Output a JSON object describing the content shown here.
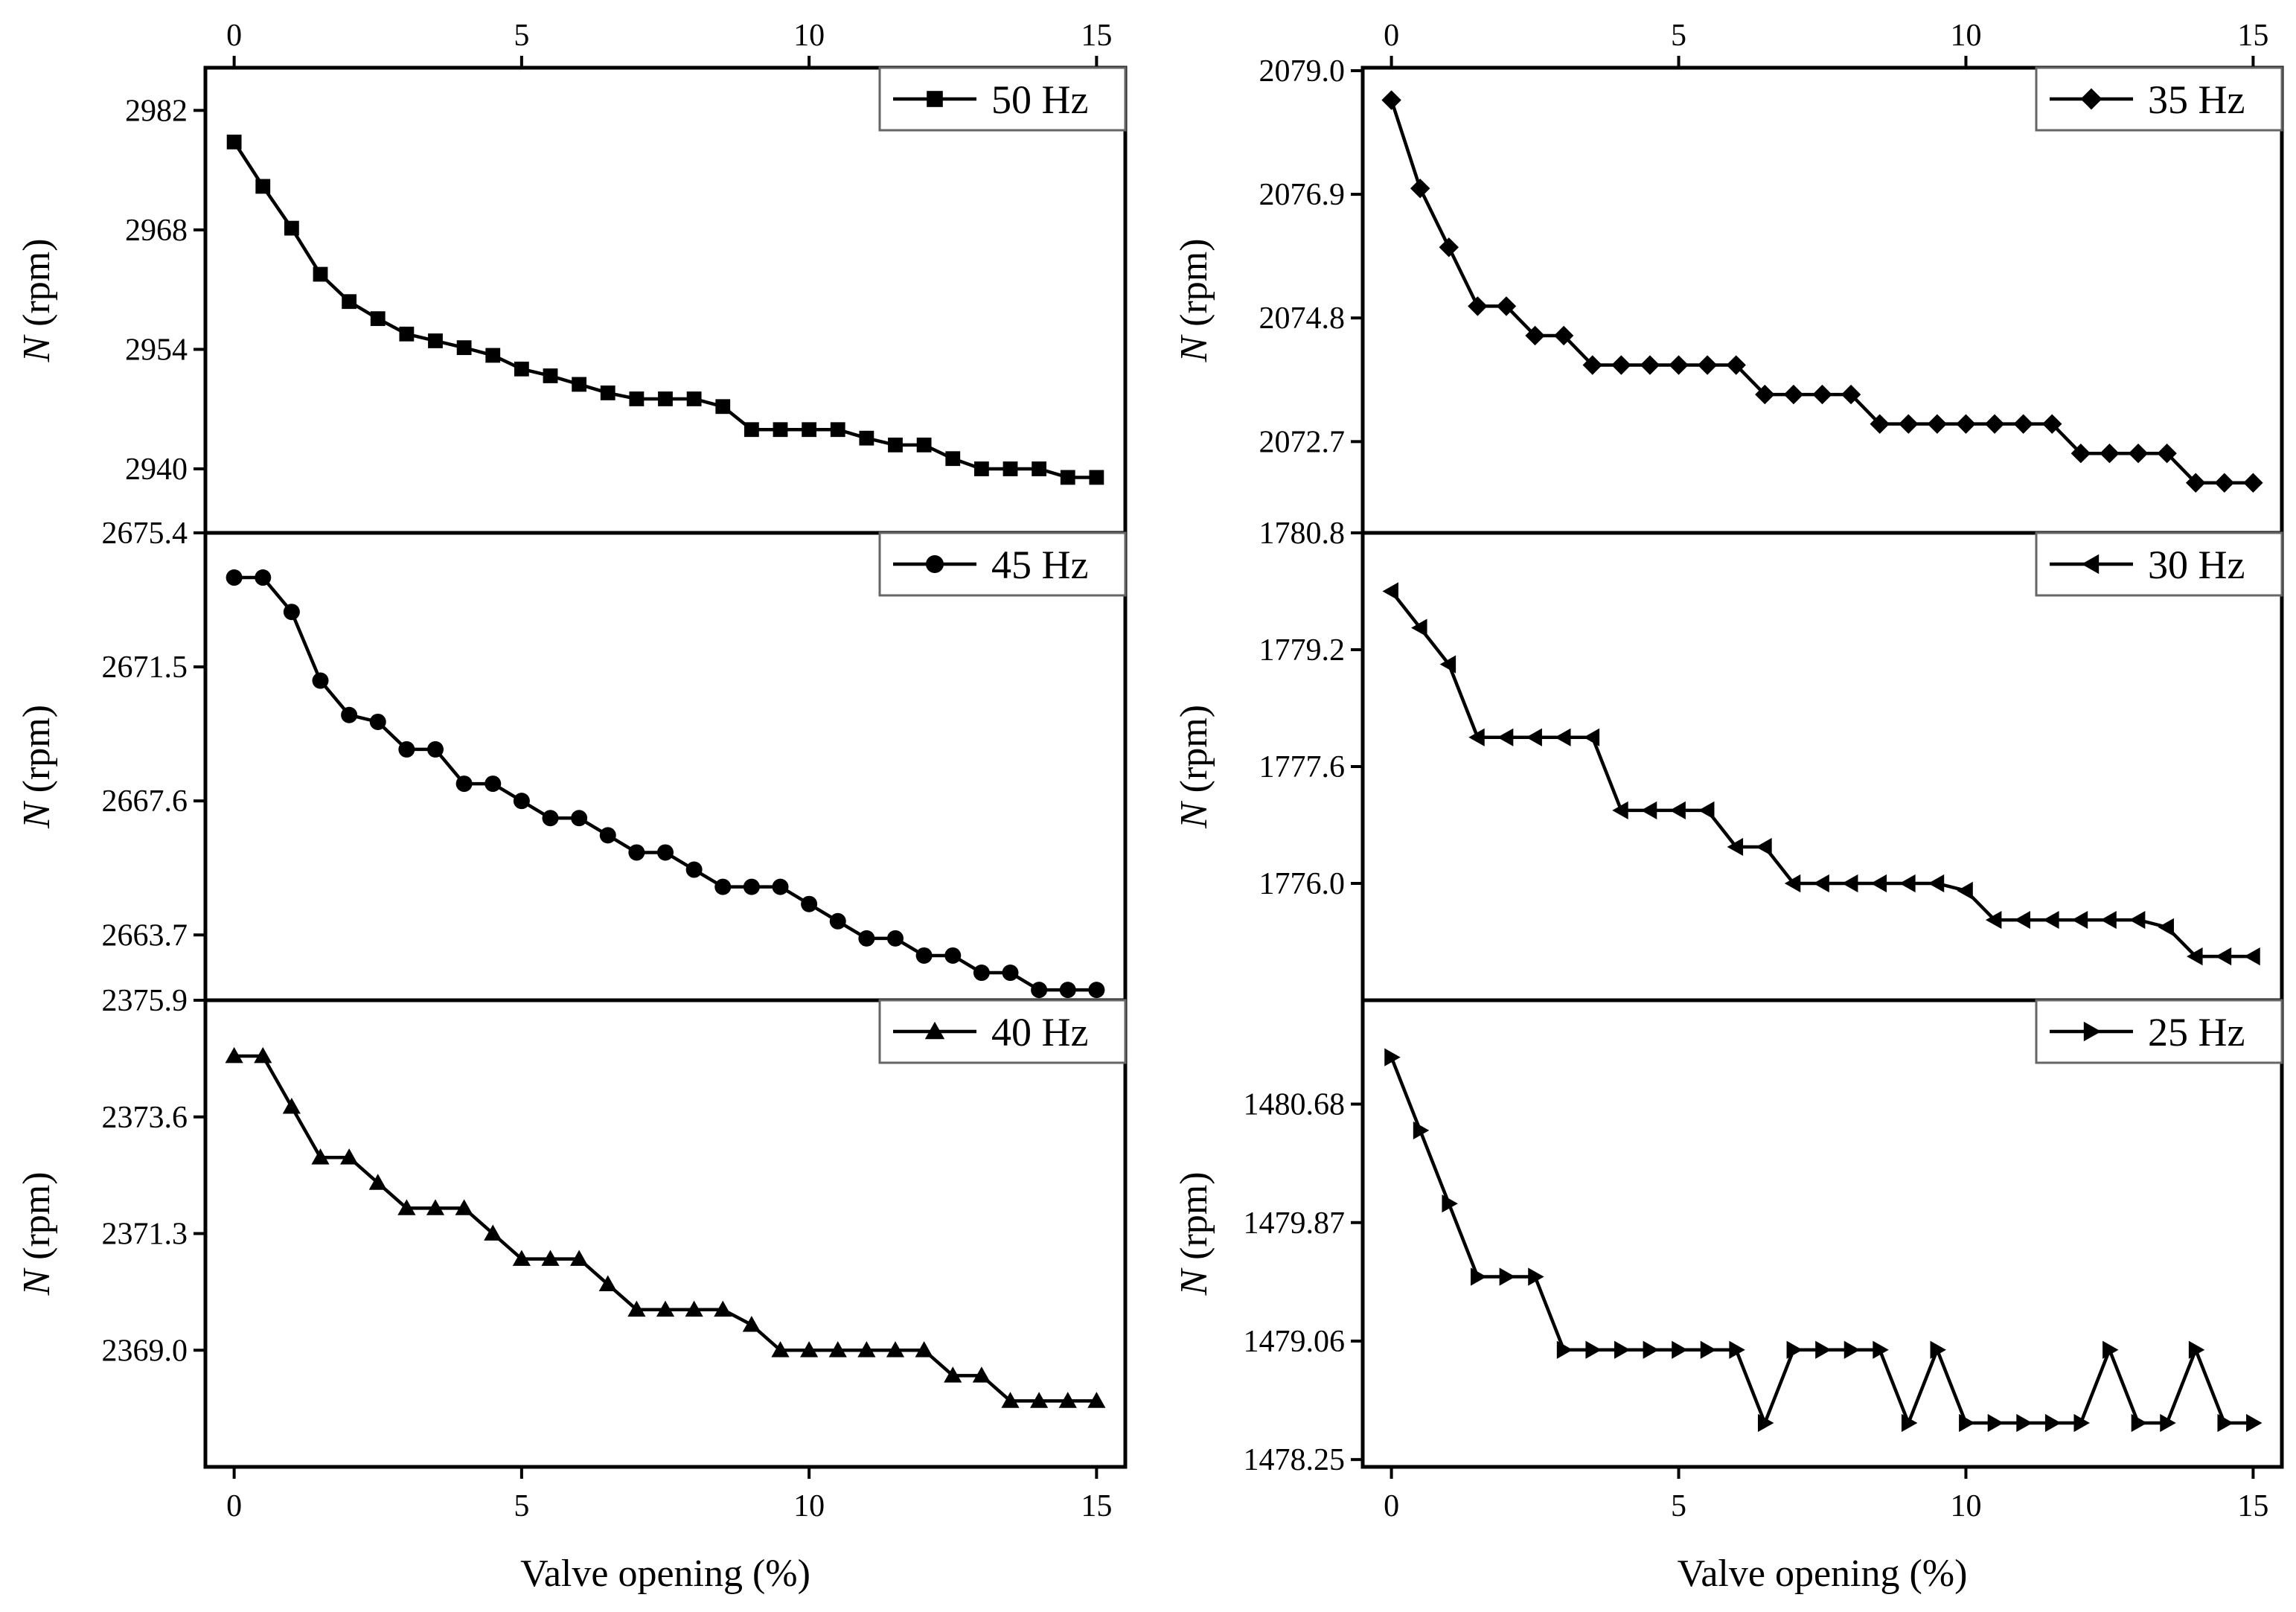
{
  "chart_data": [
    {
      "type": "line",
      "legend": "50 Hz",
      "marker": "square",
      "xlabel": "Valve opening (%)",
      "ylabel_italic": "N",
      "ylabel_rest": " (rpm)",
      "xlim": [
        -0.5,
        15.5
      ],
      "ylim": [
        2932.5,
        2987
      ],
      "xticks": [
        0,
        5,
        10,
        15
      ],
      "yticks": [
        2940,
        2954,
        2968,
        2982
      ],
      "ytick_labels": [
        "2940",
        "2954",
        "2968",
        "2982"
      ],
      "x": [
        0,
        0.5,
        1,
        1.5,
        2,
        2.5,
        3,
        3.5,
        4,
        4.5,
        5,
        5.5,
        6,
        6.5,
        7,
        7.5,
        8,
        8.5,
        9,
        9.5,
        10,
        10.5,
        11,
        11.5,
        12,
        12.5,
        13,
        13.5,
        14,
        14.5,
        15
      ],
      "values": [
        2978.3,
        2973.1,
        2968.2,
        2962.8,
        2959.6,
        2957.6,
        2955.8,
        2955.0,
        2954.2,
        2953.3,
        2951.7,
        2950.9,
        2949.9,
        2948.9,
        2948.2,
        2948.2,
        2948.2,
        2947.3,
        2944.6,
        2944.6,
        2944.6,
        2944.6,
        2943.6,
        2942.8,
        2942.8,
        2941.2,
        2940.0,
        2940.0,
        2940.0,
        2939.0,
        2939.0
      ]
    },
    {
      "type": "line",
      "legend": "45 Hz",
      "marker": "circle",
      "xlabel": "Valve opening (%)",
      "ylabel_italic": "N",
      "ylabel_rest": " (rpm)",
      "xlim": [
        -0.5,
        15.5
      ],
      "ylim": [
        2661.8,
        2675.4
      ],
      "xticks": [
        0,
        5,
        10,
        15
      ],
      "yticks": [
        2663.7,
        2667.6,
        2671.5,
        2675.4
      ],
      "ytick_labels": [
        "2663.7",
        "2667.6",
        "2671.5",
        "2675.4"
      ],
      "x": [
        0,
        0.5,
        1,
        1.5,
        2,
        2.5,
        3,
        3.5,
        4,
        4.5,
        5,
        5.5,
        6,
        6.5,
        7,
        7.5,
        8,
        8.5,
        9,
        9.5,
        10,
        10.5,
        11,
        11.5,
        12,
        12.5,
        13,
        13.5,
        14,
        14.5,
        15
      ],
      "values": [
        2674.1,
        2674.1,
        2673.1,
        2671.1,
        2670.1,
        2669.9,
        2669.1,
        2669.1,
        2668.1,
        2668.1,
        2667.6,
        2667.1,
        2667.1,
        2666.6,
        2666.1,
        2666.1,
        2665.6,
        2665.1,
        2665.1,
        2665.1,
        2664.6,
        2664.1,
        2663.6,
        2663.6,
        2663.1,
        2663.1,
        2662.6,
        2662.6,
        2662.1,
        2662.1,
        2662.1
      ]
    },
    {
      "type": "line",
      "legend": "40 Hz",
      "marker": "triangle-up",
      "xlabel": "Valve opening (%)",
      "ylabel_italic": "N",
      "ylabel_rest": " (rpm)",
      "xlim": [
        -0.5,
        15.5
      ],
      "ylim": [
        2366.7,
        2375.9
      ],
      "xticks": [
        0,
        5,
        10,
        15
      ],
      "yticks": [
        2369.0,
        2371.3,
        2373.6,
        2375.9
      ],
      "ytick_labels": [
        "2369.0",
        "2371.3",
        "2373.6",
        "2375.9"
      ],
      "x": [
        0,
        0.5,
        1,
        1.5,
        2,
        2.5,
        3,
        3.5,
        4,
        4.5,
        5,
        5.5,
        6,
        6.5,
        7,
        7.5,
        8,
        8.5,
        9,
        9.5,
        10,
        10.5,
        11,
        11.5,
        12,
        12.5,
        13,
        13.5,
        14,
        14.5,
        15
      ],
      "values": [
        2374.8,
        2374.8,
        2373.8,
        2372.8,
        2372.8,
        2372.3,
        2371.8,
        2371.8,
        2371.8,
        2371.3,
        2370.8,
        2370.8,
        2370.8,
        2370.3,
        2369.8,
        2369.8,
        2369.8,
        2369.8,
        2369.5,
        2369.0,
        2369.0,
        2369.0,
        2369.0,
        2369.0,
        2369.0,
        2368.5,
        2368.5,
        2368.0,
        2368.0,
        2368.0,
        2368.0
      ]
    },
    {
      "type": "line",
      "legend": "35 Hz",
      "marker": "diamond",
      "xlabel": "Valve opening (%)",
      "ylabel_italic": "N",
      "ylabel_rest": " (rpm)",
      "xlim": [
        -0.5,
        15.5
      ],
      "ylim": [
        2071.15,
        2079.05
      ],
      "xticks": [
        0,
        5,
        10,
        15
      ],
      "yticks": [
        2072.7,
        2074.8,
        2076.9,
        2079.0
      ],
      "ytick_labels": [
        "2072.7",
        "2074.8",
        "2076.9",
        "2079.0"
      ],
      "x": [
        0,
        0.5,
        1,
        1.5,
        2,
        2.5,
        3,
        3.5,
        4,
        4.5,
        5,
        5.5,
        6,
        6.5,
        7,
        7.5,
        8,
        8.5,
        9,
        9.5,
        10,
        10.5,
        11,
        11.5,
        12,
        12.5,
        13,
        13.5,
        14,
        14.5,
        15
      ],
      "values": [
        2078.5,
        2077.0,
        2076.0,
        2075.0,
        2075.0,
        2074.5,
        2074.5,
        2074.0,
        2074.0,
        2074.0,
        2074.0,
        2074.0,
        2074.0,
        2073.5,
        2073.5,
        2073.5,
        2073.5,
        2073.0,
        2073.0,
        2073.0,
        2073.0,
        2073.0,
        2073.0,
        2073.0,
        2072.5,
        2072.5,
        2072.5,
        2072.5,
        2072.0,
        2072.0,
        2072.0
      ]
    },
    {
      "type": "line",
      "legend": "30 Hz",
      "marker": "triangle-left",
      "xlabel": "Valve opening (%)",
      "ylabel_italic": "N",
      "ylabel_rest": " (rpm)",
      "xlim": [
        -0.5,
        15.5
      ],
      "ylim": [
        1774.4,
        1780.8
      ],
      "xticks": [
        0,
        5,
        10,
        15
      ],
      "yticks": [
        1776.0,
        1777.6,
        1779.2,
        1780.8
      ],
      "ytick_labels": [
        "1776.0",
        "1777.6",
        "1779.2",
        "1780.8"
      ],
      "x": [
        0,
        0.5,
        1,
        1.5,
        2,
        2.5,
        3,
        3.5,
        4,
        4.5,
        5,
        5.5,
        6,
        6.5,
        7,
        7.5,
        8,
        8.5,
        9,
        9.5,
        10,
        10.5,
        11,
        11.5,
        12,
        12.5,
        13,
        13.5,
        14,
        14.5,
        15
      ],
      "values": [
        1780.0,
        1779.5,
        1779.0,
        1778.0,
        1778.0,
        1778.0,
        1778.0,
        1778.0,
        1777.0,
        1777.0,
        1777.0,
        1777.0,
        1776.5,
        1776.5,
        1776.0,
        1776.0,
        1776.0,
        1776.0,
        1776.0,
        1776.0,
        1775.9,
        1775.5,
        1775.5,
        1775.5,
        1775.5,
        1775.5,
        1775.5,
        1775.4,
        1775.0,
        1775.0,
        1775.0
      ]
    },
    {
      "type": "line",
      "legend": "25 Hz",
      "marker": "triangle-right",
      "xlabel": "Valve opening (%)",
      "ylabel_italic": "N",
      "ylabel_rest": " (rpm)",
      "xlim": [
        -0.5,
        15.5
      ],
      "ylim": [
        1478.2,
        1481.39
      ],
      "xticks": [
        0,
        5,
        10,
        15
      ],
      "yticks": [
        1478.25,
        1479.06,
        1479.87,
        1480.68
      ],
      "ytick_labels": [
        "1478.25",
        "1479.06",
        "1479.87",
        "1480.68"
      ],
      "x": [
        0,
        0.5,
        1,
        1.5,
        2,
        2.5,
        3,
        3.5,
        4,
        4.5,
        5,
        5.5,
        6,
        6.5,
        7,
        7.5,
        8,
        8.5,
        9,
        9.5,
        10,
        10.5,
        11,
        11.5,
        12,
        12.5,
        13,
        13.5,
        14,
        14.5,
        15
      ],
      "values": [
        1481.0,
        1480.5,
        1480.0,
        1479.5,
        1479.5,
        1479.5,
        1479.0,
        1479.0,
        1479.0,
        1479.0,
        1479.0,
        1479.0,
        1479.0,
        1478.5,
        1479.0,
        1479.0,
        1479.0,
        1479.0,
        1478.5,
        1479.0,
        1478.5,
        1478.5,
        1478.5,
        1478.5,
        1478.5,
        1479.0,
        1478.5,
        1478.5,
        1479.0,
        1478.5,
        1478.5
      ]
    }
  ]
}
